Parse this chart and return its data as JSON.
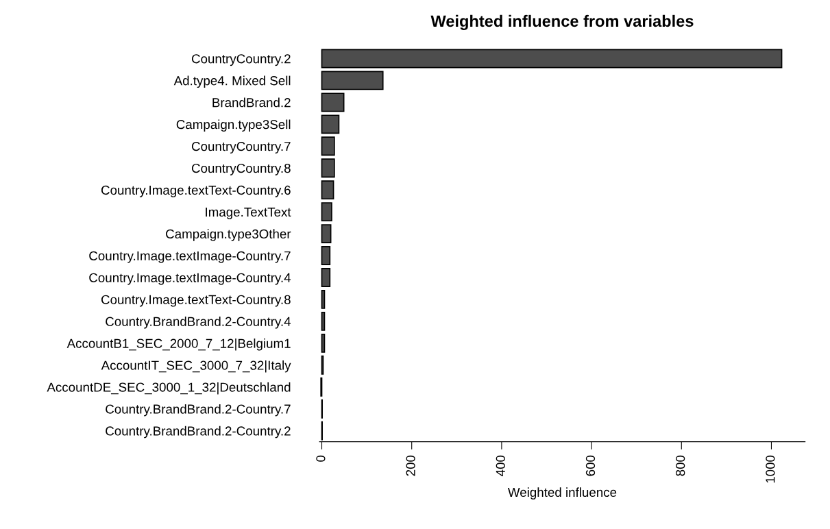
{
  "chart_data": {
    "type": "bar",
    "orientation": "horizontal",
    "title": "Weighted influence from variables",
    "xlabel": "Weighted influence",
    "categories": [
      "CountryCountry.2",
      "Ad.type4. Mixed Sell",
      "BrandBrand.2",
      "Campaign.type3Sell",
      "CountryCountry.7",
      "CountryCountry.8",
      "Country.Image.textText-Country.6",
      "Image.TextText",
      "Campaign.type3Other",
      "Country.Image.textImage-Country.7",
      "Country.Image.textImage-Country.4",
      "Country.Image.textText-Country.8",
      "Country.BrandBrand.2-Country.4",
      "AccountB1_SEC_2000_7_12|Belgium1",
      "AccountIT_SEC_3000_7_32|Italy",
      "AccountDE_SEC_3000_1_32|Deutschland",
      "Country.BrandBrand.2-Country.7",
      "Country.BrandBrand.2-Country.2"
    ],
    "values": [
      1023,
      136,
      49,
      38,
      28,
      28,
      26,
      22,
      20,
      18,
      18,
      6,
      6,
      6,
      3,
      -2,
      1,
      1
    ],
    "color": "#4d4d4d",
    "xlim": [
      -5,
      1075
    ],
    "xticks": [
      0,
      200,
      400,
      600,
      800,
      1000
    ],
    "grid": false
  }
}
